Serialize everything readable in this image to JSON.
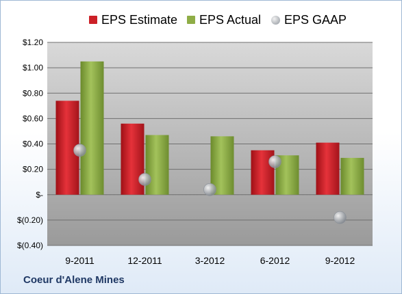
{
  "chart_data": {
    "type": "bar",
    "categories": [
      "9-2011",
      "12-2011",
      "3-2012",
      "6-2012",
      "9-2012"
    ],
    "series": [
      {
        "name": "EPS Estimate",
        "kind": "bar",
        "color": "#cc2027",
        "values": [
          0.74,
          0.56,
          null,
          0.35,
          0.41
        ]
      },
      {
        "name": "EPS Actual",
        "kind": "bar",
        "color": "#8fad46",
        "values": [
          1.05,
          0.47,
          0.46,
          0.31,
          0.29
        ]
      },
      {
        "name": "EPS GAAP",
        "kind": "marker",
        "color": "#9aa0a8",
        "values": [
          0.35,
          0.12,
          0.04,
          0.26,
          -0.18
        ]
      }
    ],
    "y_ticks": [
      1.2,
      1.0,
      0.8,
      0.6,
      0.4,
      0.2,
      0,
      -0.2,
      -0.4
    ],
    "y_tick_labels": [
      "$1.20",
      "$1.00",
      "$0.80",
      "$0.60",
      "$0.40",
      "$0.20",
      "$-",
      "$(0.20)",
      "$(0.40)"
    ],
    "ylim": [
      -0.4,
      1.2
    ],
    "grid": true,
    "legend_position": "top",
    "plot_background": "gray gradient"
  },
  "legend": {
    "estimate_label": "EPS Estimate",
    "actual_label": "EPS Actual",
    "gaap_label": "EPS GAAP"
  },
  "company_name": "Coeur d'Alene Mines"
}
